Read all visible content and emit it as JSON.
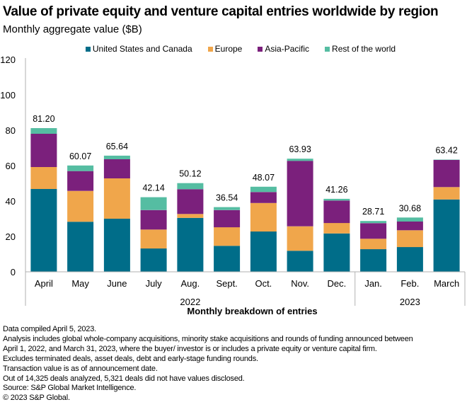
{
  "header": {
    "title": "Value of private equity and venture capital entries worldwide by region",
    "subtitle": "Monthly aggregate value ($B)"
  },
  "colors": {
    "us_canada": "#006d89",
    "europe": "#f0a64b",
    "asia_pacific": "#7b207c",
    "rest": "#55bda2",
    "axis": "#b0b0b0"
  },
  "chart_data": {
    "type": "bar",
    "stacked": true,
    "title": "Value of private equity and venture capital entries worldwide by region",
    "subtitle": "Monthly aggregate value ($B)",
    "xlabel": "Monthly breakdown of entries",
    "ylabel": "",
    "ylim": [
      0,
      120
    ],
    "yticks": [
      0,
      20,
      40,
      60,
      80,
      100,
      120
    ],
    "grid": false,
    "legend_position": "top-center",
    "categories": [
      "April",
      "May",
      "June",
      "July",
      "Aug.",
      "Sept.",
      "Oct.",
      "Nov.",
      "Dec.",
      "Jan.",
      "Feb.",
      "March"
    ],
    "year_groups": [
      {
        "label": "2022",
        "start": 0,
        "end": 8
      },
      {
        "label": "2023",
        "start": 9,
        "end": 11
      }
    ],
    "series": [
      {
        "name": "United States and Canada",
        "key": "us_canada",
        "values": [
          46.8,
          28.3,
          30.0,
          13.2,
          30.5,
          14.7,
          22.8,
          11.9,
          21.7,
          12.8,
          14.0,
          40.9
        ]
      },
      {
        "name": "Europe",
        "key": "europe",
        "values": [
          12.4,
          17.4,
          22.8,
          10.7,
          2.2,
          10.5,
          16.1,
          13.8,
          5.9,
          5.9,
          9.5,
          7.0
        ]
      },
      {
        "name": "Asia-Pacific",
        "key": "asia_pacific",
        "values": [
          18.8,
          11.2,
          10.8,
          11.0,
          14.0,
          9.7,
          6.2,
          37.0,
          12.7,
          8.8,
          4.9,
          15.3
        ]
      },
      {
        "name": "Rest of the world",
        "key": "rest",
        "values": [
          3.2,
          3.17,
          2.04,
          7.24,
          3.42,
          1.64,
          2.97,
          1.23,
          0.96,
          1.21,
          2.28,
          0.22
        ]
      }
    ],
    "totals": [
      81.2,
      60.07,
      65.64,
      42.14,
      50.12,
      36.54,
      48.07,
      63.93,
      41.26,
      28.71,
      30.68,
      63.42
    ],
    "total_labels": [
      "81.20",
      "60.07",
      "65.64",
      "42.14",
      "50.12",
      "36.54",
      "48.07",
      "63.93",
      "41.26",
      "28.71",
      "30.68",
      "63.42"
    ]
  },
  "notes": [
    "Data compiled April 5, 2023.",
    "Analysis includes global whole-company acquisitions, minority stake acquisitions and rounds of funding announced between",
    "April 1, 2022, and March 31, 2023, where the buyer/ investor is or includes a private equity or venture capital firm.",
    "Excludes terminated deals, asset deals, debt and early-stage funding rounds.",
    "Transaction value is as of announcement date.",
    "Out of 14,325 deals analyzed, 5,321 deals did not have values disclosed.",
    "Source: S&P Global Market Intelligence.",
    "© 2023 S&P Global."
  ]
}
